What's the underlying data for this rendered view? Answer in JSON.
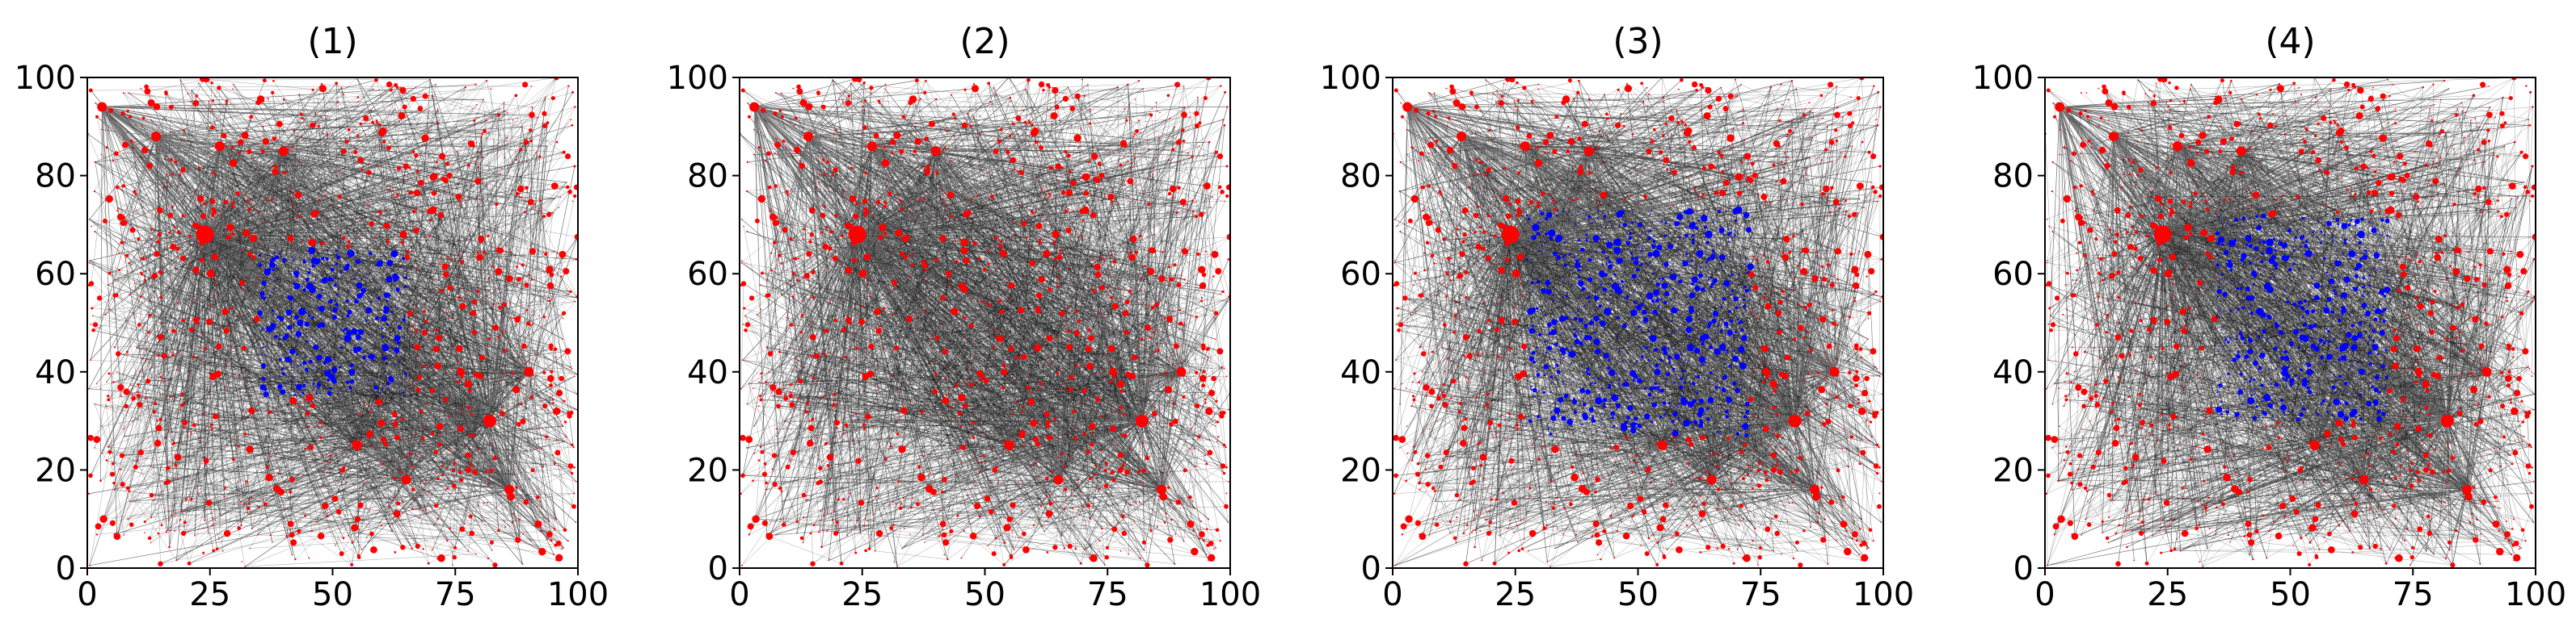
{
  "chart_data": [
    {
      "type": "scatter",
      "title": "(1)",
      "xlim": [
        0,
        100
      ],
      "ylim": [
        0,
        100
      ],
      "xticks": [
        "0",
        "25",
        "50",
        "75",
        "100"
      ],
      "yticks": [
        "0",
        "20",
        "40",
        "60",
        "80",
        "100"
      ],
      "grid": false,
      "colors": {
        "background_nodes": "#ff0000",
        "region_nodes": "#0000ff",
        "edges": "#000000"
      },
      "hubs": [
        [
          24,
          68
        ],
        [
          82,
          30
        ],
        [
          3,
          94
        ],
        [
          14,
          88
        ],
        [
          27,
          86
        ],
        [
          90,
          40
        ],
        [
          65,
          18
        ],
        [
          86,
          16
        ],
        [
          40,
          85
        ],
        [
          55,
          25
        ]
      ],
      "region": {
        "x": [
          35,
          65
        ],
        "y": [
          35,
          65
        ]
      }
    },
    {
      "type": "scatter",
      "title": "(2)",
      "xlim": [
        0,
        100
      ],
      "ylim": [
        0,
        100
      ],
      "xticks": [
        "0",
        "25",
        "50",
        "75",
        "100"
      ],
      "yticks": [
        "0",
        "20",
        "40",
        "60",
        "80",
        "100"
      ],
      "grid": false,
      "colors": {
        "background_nodes": "#ff0000",
        "region_nodes": "#0000ff",
        "edges": "#000000"
      },
      "hubs": [
        [
          24,
          68
        ],
        [
          82,
          30
        ],
        [
          3,
          94
        ],
        [
          14,
          88
        ],
        [
          27,
          86
        ],
        [
          90,
          40
        ],
        [
          65,
          18
        ],
        [
          86,
          16
        ],
        [
          40,
          85
        ],
        [
          55,
          25
        ]
      ],
      "region": null
    },
    {
      "type": "scatter",
      "title": "(3)",
      "xlim": [
        0,
        100
      ],
      "ylim": [
        0,
        100
      ],
      "xticks": [
        "0",
        "25",
        "50",
        "75",
        "100"
      ],
      "yticks": [
        "0",
        "20",
        "40",
        "60",
        "80",
        "100"
      ],
      "grid": false,
      "colors": {
        "background_nodes": "#ff0000",
        "region_nodes": "#0000ff",
        "edges": "#000000"
      },
      "hubs": [
        [
          24,
          68
        ],
        [
          82,
          30
        ],
        [
          3,
          94
        ],
        [
          14,
          88
        ],
        [
          27,
          86
        ],
        [
          90,
          40
        ],
        [
          65,
          18
        ],
        [
          86,
          16
        ],
        [
          40,
          85
        ],
        [
          55,
          25
        ]
      ],
      "region": {
        "x": [
          27,
          73
        ],
        "y": [
          27,
          73
        ]
      }
    },
    {
      "type": "scatter",
      "title": "(4)",
      "xlim": [
        0,
        100
      ],
      "ylim": [
        0,
        100
      ],
      "xticks": [
        "0",
        "25",
        "50",
        "75",
        "100"
      ],
      "yticks": [
        "0",
        "20",
        "40",
        "60",
        "80",
        "100"
      ],
      "grid": false,
      "colors": {
        "background_nodes": "#ff0000",
        "region_nodes": "#0000ff",
        "edges": "#000000"
      },
      "hubs": [
        [
          24,
          68
        ],
        [
          82,
          30
        ],
        [
          3,
          94
        ],
        [
          14,
          88
        ],
        [
          27,
          86
        ],
        [
          90,
          40
        ],
        [
          65,
          18
        ],
        [
          86,
          16
        ],
        [
          40,
          85
        ],
        [
          55,
          25
        ]
      ],
      "region": {
        "x": [
          35,
          70
        ],
        "y": [
          30,
          72
        ]
      }
    }
  ]
}
